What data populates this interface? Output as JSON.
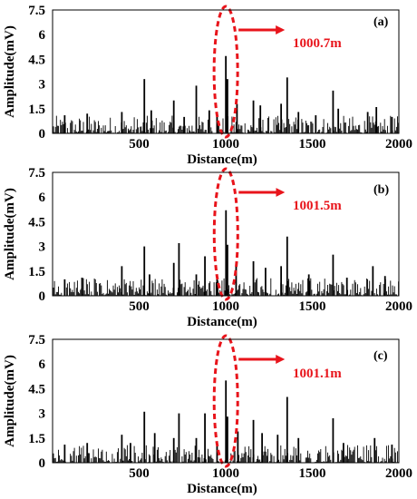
{
  "accent_color": "#e8141b",
  "line_color": "#000000",
  "chart_data": [
    {
      "type": "line",
      "panel_label": "(a)",
      "xlabel": "Distance(m)",
      "ylabel": "Amplitude(mV)",
      "xlim": [
        0,
        2000
      ],
      "ylim": [
        0,
        7.5
      ],
      "xticks": [
        "500",
        "1000",
        "1500",
        "2000"
      ],
      "yticks": [
        "0",
        "1.5",
        "3",
        "4.5",
        "6",
        "7.5"
      ],
      "grid": false,
      "peaks": [
        {
          "x": 70,
          "y": 1.1
        },
        {
          "x": 200,
          "y": 1.2
        },
        {
          "x": 400,
          "y": 1.3
        },
        {
          "x": 530,
          "y": 3.3
        },
        {
          "x": 570,
          "y": 1.4
        },
        {
          "x": 700,
          "y": 2.0
        },
        {
          "x": 760,
          "y": 1.0
        },
        {
          "x": 830,
          "y": 2.9
        },
        {
          "x": 905,
          "y": 1.4
        },
        {
          "x": 950,
          "y": 1.0
        },
        {
          "x": 1000.7,
          "y": 4.7
        },
        {
          "x": 1010,
          "y": 3.3
        },
        {
          "x": 1065,
          "y": 1.8
        },
        {
          "x": 1160,
          "y": 2.0
        },
        {
          "x": 1200,
          "y": 1.7
        },
        {
          "x": 1320,
          "y": 1.8
        },
        {
          "x": 1355,
          "y": 3.4
        },
        {
          "x": 1420,
          "y": 1.3
        },
        {
          "x": 1520,
          "y": 1.1
        },
        {
          "x": 1620,
          "y": 2.6
        },
        {
          "x": 1650,
          "y": 1.5
        },
        {
          "x": 1820,
          "y": 1.3
        },
        {
          "x": 1870,
          "y": 1.6
        },
        {
          "x": 1960,
          "y": 1.0
        }
      ],
      "noise_level": 0.9,
      "annotation": {
        "x": 1000.7,
        "text": "1000.7m"
      }
    },
    {
      "type": "line",
      "panel_label": "(b)",
      "xlabel": "Distance(m)",
      "ylabel": "Amplitude(mV)",
      "xlim": [
        0,
        2000
      ],
      "ylim": [
        0,
        7.5
      ],
      "xticks": [
        "500",
        "1000",
        "1500",
        "2000"
      ],
      "yticks": [
        "0",
        "1.5",
        "3",
        "4.5",
        "6",
        "7.5"
      ],
      "grid": false,
      "peaks": [
        {
          "x": 70,
          "y": 1.0
        },
        {
          "x": 170,
          "y": 1.1
        },
        {
          "x": 400,
          "y": 1.8
        },
        {
          "x": 530,
          "y": 3.0
        },
        {
          "x": 560,
          "y": 1.3
        },
        {
          "x": 700,
          "y": 2.0
        },
        {
          "x": 730,
          "y": 3.2
        },
        {
          "x": 830,
          "y": 1.3
        },
        {
          "x": 880,
          "y": 2.4
        },
        {
          "x": 950,
          "y": 1.0
        },
        {
          "x": 1001.5,
          "y": 5.2
        },
        {
          "x": 1010,
          "y": 3.1
        },
        {
          "x": 1060,
          "y": 2.0
        },
        {
          "x": 1160,
          "y": 2.1
        },
        {
          "x": 1230,
          "y": 1.7
        },
        {
          "x": 1320,
          "y": 1.8
        },
        {
          "x": 1355,
          "y": 3.6
        },
        {
          "x": 1480,
          "y": 1.3
        },
        {
          "x": 1620,
          "y": 2.5
        },
        {
          "x": 1700,
          "y": 1.1
        },
        {
          "x": 1850,
          "y": 1.8
        },
        {
          "x": 1920,
          "y": 1.2
        }
      ],
      "noise_level": 0.9,
      "annotation": {
        "x": 1001.5,
        "text": "1001.5m"
      }
    },
    {
      "type": "line",
      "panel_label": "(c)",
      "xlabel": "Distance(m)",
      "ylabel": "Amplitude(mV)",
      "xlim": [
        0,
        2000
      ],
      "ylim": [
        0,
        7.5
      ],
      "xticks": [
        "500",
        "1000",
        "1500",
        "2000"
      ],
      "yticks": [
        "0",
        "1.5",
        "3",
        "4.5",
        "6",
        "7.5"
      ],
      "grid": false,
      "peaks": [
        {
          "x": 70,
          "y": 1.1
        },
        {
          "x": 200,
          "y": 1.2
        },
        {
          "x": 400,
          "y": 1.7
        },
        {
          "x": 450,
          "y": 1.2
        },
        {
          "x": 530,
          "y": 3.1
        },
        {
          "x": 590,
          "y": 1.8
        },
        {
          "x": 700,
          "y": 1.5
        },
        {
          "x": 730,
          "y": 3.0
        },
        {
          "x": 830,
          "y": 1.5
        },
        {
          "x": 880,
          "y": 3.0
        },
        {
          "x": 950,
          "y": 1.2
        },
        {
          "x": 1001.1,
          "y": 5.0
        },
        {
          "x": 1010,
          "y": 2.8
        },
        {
          "x": 1070,
          "y": 1.9
        },
        {
          "x": 1160,
          "y": 2.6
        },
        {
          "x": 1210,
          "y": 1.8
        },
        {
          "x": 1300,
          "y": 1.7
        },
        {
          "x": 1355,
          "y": 4.0
        },
        {
          "x": 1420,
          "y": 1.5
        },
        {
          "x": 1620,
          "y": 2.7
        },
        {
          "x": 1680,
          "y": 1.2
        },
        {
          "x": 1860,
          "y": 1.5
        },
        {
          "x": 1960,
          "y": 1.1
        }
      ],
      "noise_level": 0.9,
      "annotation": {
        "x": 1001.1,
        "text": "1001.1m"
      }
    }
  ]
}
